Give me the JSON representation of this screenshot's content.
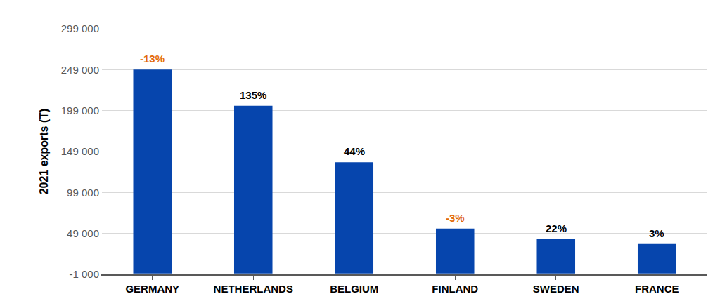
{
  "chart_data": {
    "type": "bar",
    "y_label": "2021 exports (T)",
    "categories": [
      "GERMANY",
      "NETHERLANDS",
      "BELGIUM",
      "FINLAND",
      "SWEDEN",
      "FRANCE"
    ],
    "values": [
      249000,
      205000,
      136000,
      55000,
      42000,
      36000
    ],
    "color": "#0645ad",
    "ylim": [
      -1000,
      299000
    ],
    "yticks": [
      {
        "value": -1000,
        "label": "-1 000"
      },
      {
        "value": 49000,
        "label": "49 000"
      },
      {
        "value": 99000,
        "label": "99 000"
      },
      {
        "value": 149000,
        "label": "149 000"
      },
      {
        "value": 199000,
        "label": "199 000"
      },
      {
        "value": 249000,
        "label": "249 000"
      },
      {
        "value": 299000,
        "label": "299 000"
      }
    ],
    "grid": true,
    "annotations": [
      {
        "category": "GERMANY",
        "text": "-13%",
        "color": "#e36c09"
      },
      {
        "category": "NETHERLANDS",
        "text": "135%",
        "color": "#000000"
      },
      {
        "category": "BELGIUM",
        "text": "44%",
        "color": "#000000"
      },
      {
        "category": "FINLAND",
        "text": "-3%",
        "color": "#e36c09"
      },
      {
        "category": "SWEDEN",
        "text": "22%",
        "color": "#000000"
      },
      {
        "category": "FRANCE",
        "text": "3%",
        "color": "#000000"
      }
    ]
  }
}
